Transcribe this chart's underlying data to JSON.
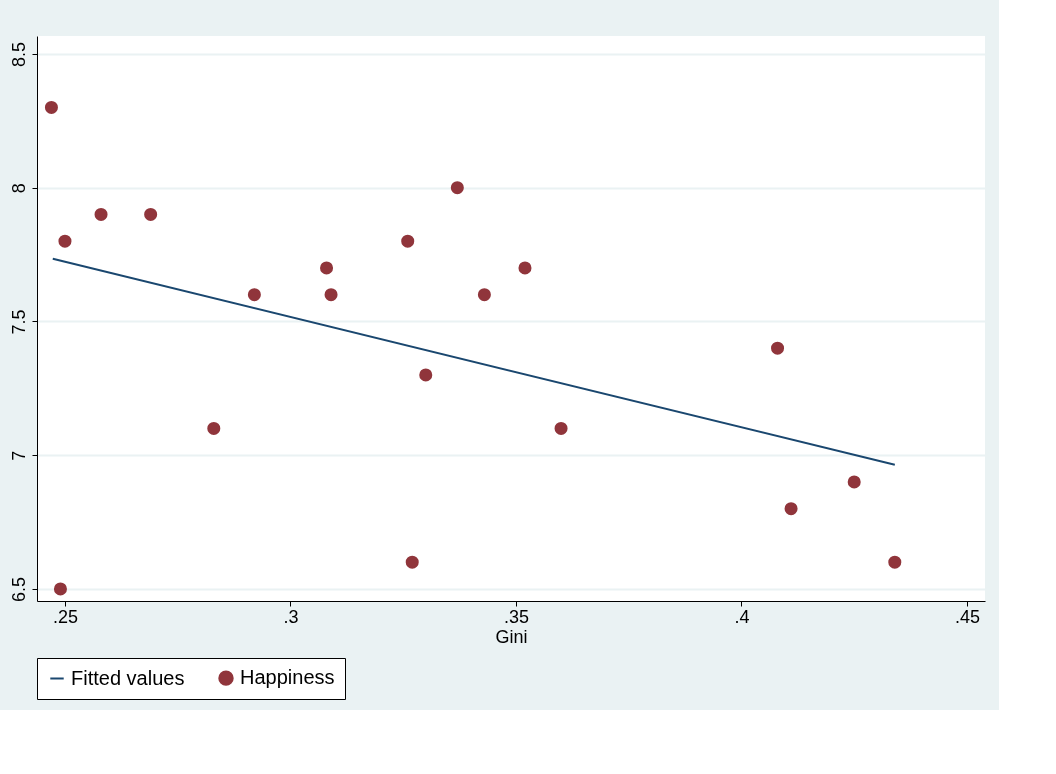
{
  "chart_data": {
    "type": "scatter",
    "xlabel": "Gini",
    "xlim": [
      0.2438,
      0.454
    ],
    "xticks": [
      {
        "value": 0.25,
        "label": ".25"
      },
      {
        "value": 0.3,
        "label": ".3"
      },
      {
        "value": 0.35,
        "label": ".35"
      },
      {
        "value": 0.4,
        "label": ".4"
      },
      {
        "value": 0.45,
        "label": ".45"
      }
    ],
    "ylim": [
      6.455,
      8.567
    ],
    "yticks": [
      6.5,
      7,
      7.5,
      8,
      8.5
    ],
    "grid": "y",
    "legend": "bottom",
    "series": [
      {
        "name": "Fitted values",
        "type": "line",
        "color": "#1a476f",
        "marker": "none",
        "line_style": "solid",
        "x": [
          0.2473,
          0.434
        ],
        "values": [
          7.734,
          6.964
        ]
      },
      {
        "name": "Happiness",
        "type": "scatter",
        "color": "#90353b",
        "marker": "circle",
        "x": [
          0.247,
          0.249,
          0.25,
          0.258,
          0.269,
          0.283,
          0.292,
          0.308,
          0.309,
          0.326,
          0.327,
          0.33,
          0.337,
          0.343,
          0.352,
          0.36,
          0.408,
          0.411,
          0.425,
          0.434
        ],
        "values": [
          8.3,
          6.5,
          7.8,
          7.9,
          7.9,
          7.1,
          7.6,
          7.7,
          7.6,
          7.8,
          6.6,
          7.3,
          8.0,
          7.6,
          7.7,
          7.1,
          7.4,
          6.8,
          6.9,
          6.6
        ]
      }
    ]
  }
}
